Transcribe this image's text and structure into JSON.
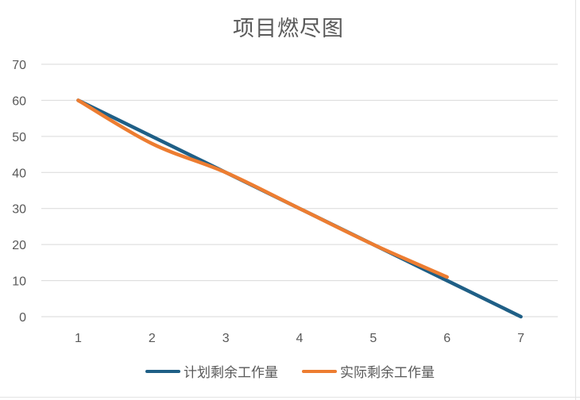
{
  "chart_data": {
    "type": "line",
    "title": "项目燃尽图",
    "x": [
      1,
      2,
      3,
      4,
      5,
      6,
      7
    ],
    "categories": [
      "1",
      "2",
      "3",
      "4",
      "5",
      "6",
      "7"
    ],
    "ylim": [
      0,
      70
    ],
    "yticks": [
      0,
      10,
      20,
      30,
      40,
      50,
      60,
      70
    ],
    "grid": true,
    "legend_position": "bottom",
    "series": [
      {
        "name": "计划剩余工作量",
        "color": "#1f5f86",
        "values": [
          60,
          50,
          40,
          30,
          20,
          10,
          0
        ]
      },
      {
        "name": "实际剩余工作量",
        "color": "#ed7d31",
        "values": [
          60,
          48,
          40,
          30,
          20,
          11,
          null
        ]
      }
    ]
  }
}
